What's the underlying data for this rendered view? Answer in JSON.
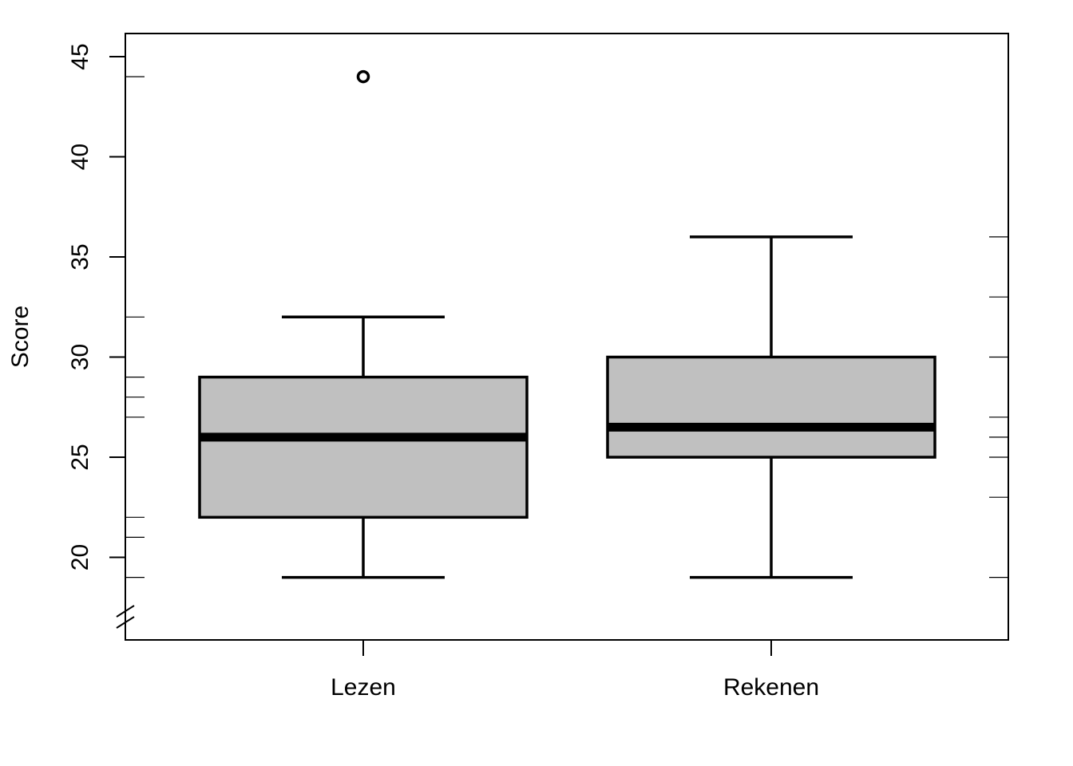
{
  "chart_data": {
    "type": "boxplot",
    "ylabel": "Score",
    "xlabel": "",
    "title": "",
    "ylim": [
      17,
      46
    ],
    "yticks": [
      20,
      25,
      30,
      35,
      40,
      45
    ],
    "axis_break": true,
    "categories": [
      "Lezen",
      "Rekenen"
    ],
    "boxes": [
      {
        "name": "Lezen",
        "whisker_low": 19,
        "q1": 22,
        "median": 26,
        "q3": 29,
        "whisker_high": 32,
        "outliers": [
          44
        ],
        "rug": [
          19,
          21,
          22,
          27,
          28,
          29,
          32,
          44
        ]
      },
      {
        "name": "Rekenen",
        "whisker_low": 19,
        "q1": 25,
        "median": 26.5,
        "q3": 30,
        "whisker_high": 36,
        "outliers": [],
        "rug": [
          19,
          23,
          25,
          26,
          27,
          30,
          33,
          36
        ]
      }
    ],
    "box_color": "#c0c0c0",
    "line_color": "#000000"
  }
}
